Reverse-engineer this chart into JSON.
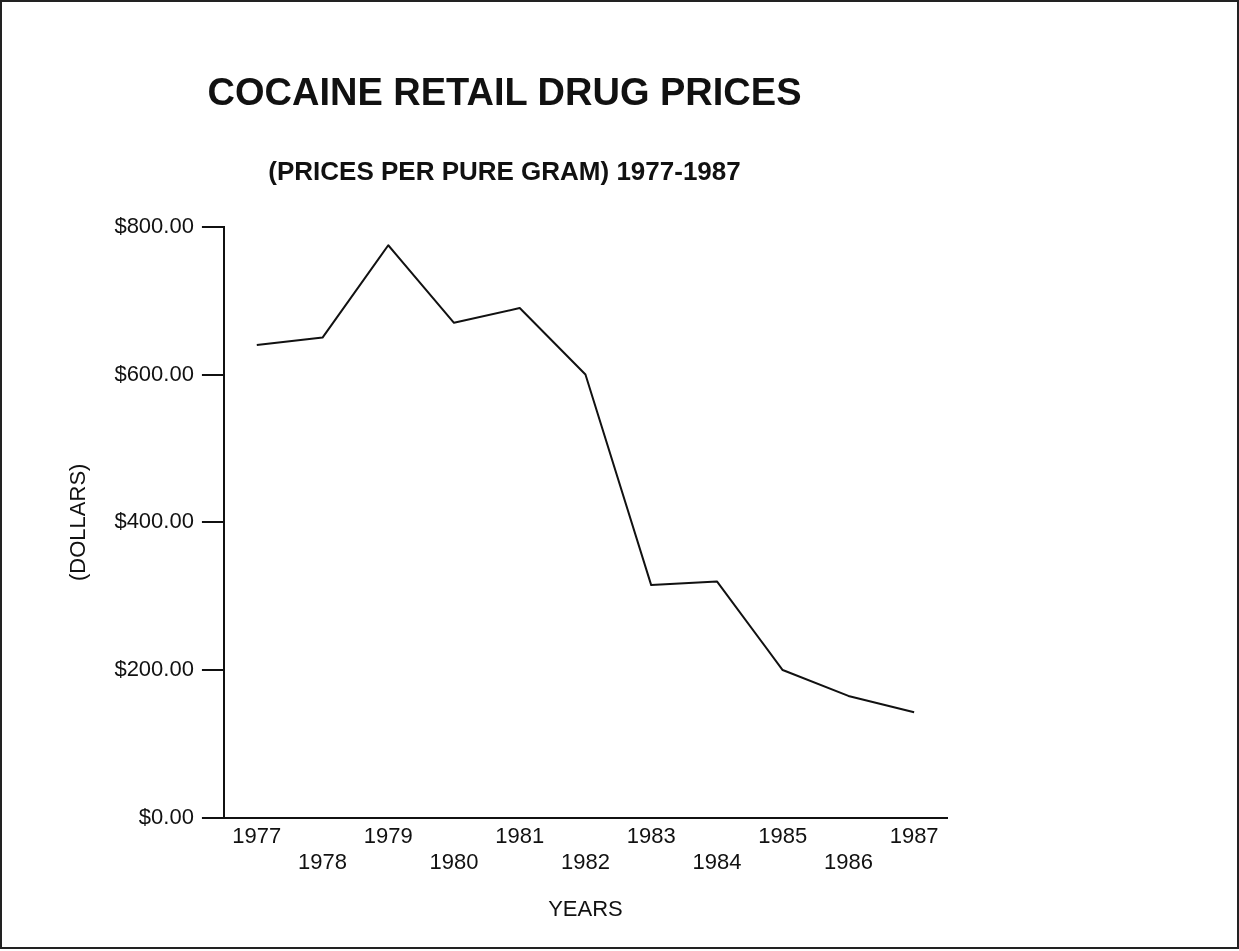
{
  "chart_data": {
    "type": "line",
    "title": "COCAINE RETAIL DRUG PRICES",
    "subtitle": "(PRICES PER PURE GRAM) 1977-1987",
    "xlabel": "YEARS",
    "ylabel": "(DOLLARS)",
    "categories": [
      "1977",
      "1978",
      "1979",
      "1980",
      "1981",
      "1982",
      "1983",
      "1984",
      "1985",
      "1986",
      "1987"
    ],
    "series": [
      {
        "color": "#111111",
        "values": [
          640,
          650,
          775,
          670,
          690,
          600,
          315,
          320,
          200,
          165,
          143
        ]
      }
    ],
    "ylim": [
      0,
      800
    ],
    "yticks": [
      {
        "value": 0,
        "label": "$0.00"
      },
      {
        "value": 200,
        "label": "$200.00"
      },
      {
        "value": 400,
        "label": "$400.00"
      },
      {
        "value": 600,
        "label": "$600.00"
      },
      {
        "value": 800,
        "label": "$800.00"
      }
    ],
    "grid": false,
    "legend": false,
    "marker": "none",
    "line_style": "solid"
  }
}
